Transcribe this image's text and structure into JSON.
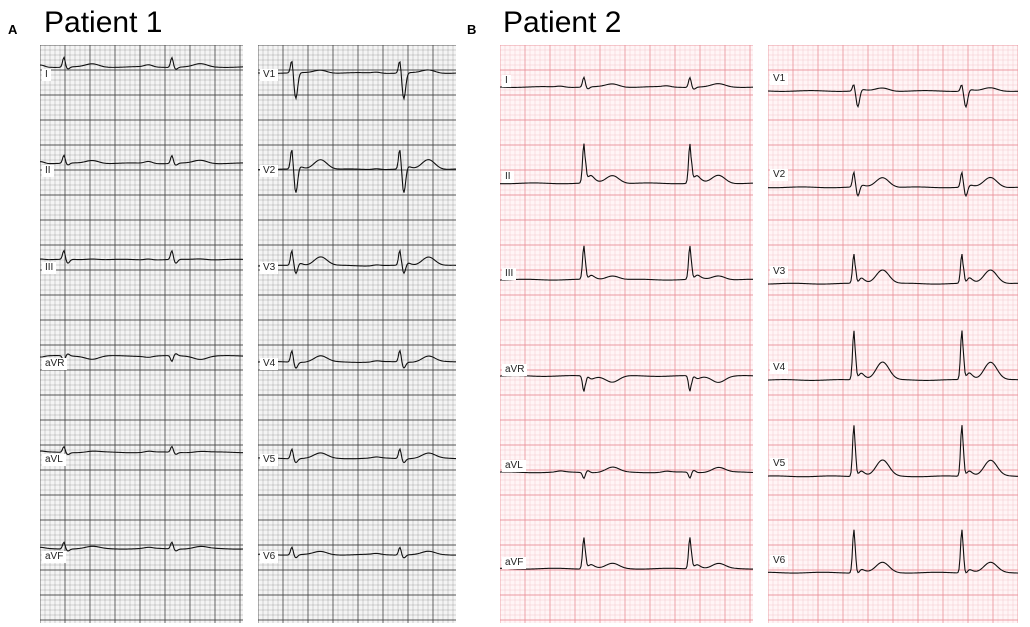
{
  "figure": {
    "panel_a": {
      "letter": "A",
      "title": "Patient 1"
    },
    "panel_b": {
      "letter": "B",
      "title": "Patient 2"
    }
  },
  "patient1": {
    "grid_color": "#3a3a3a",
    "paper_color": "#f4f4f4",
    "left_leads": [
      "I",
      "II",
      "III",
      "aVR",
      "aVL",
      "aVF"
    ],
    "right_leads": [
      "V1",
      "V2",
      "V3",
      "V4",
      "V5",
      "V6"
    ]
  },
  "patient2": {
    "grid_color": "#e88a94",
    "paper_color": "#fff5f6",
    "left_leads": [
      "I",
      "II",
      "III",
      "aVR",
      "aVL",
      "aVF"
    ],
    "right_leads": [
      "V1",
      "V2",
      "V3",
      "V4",
      "V5",
      "V6"
    ]
  }
}
